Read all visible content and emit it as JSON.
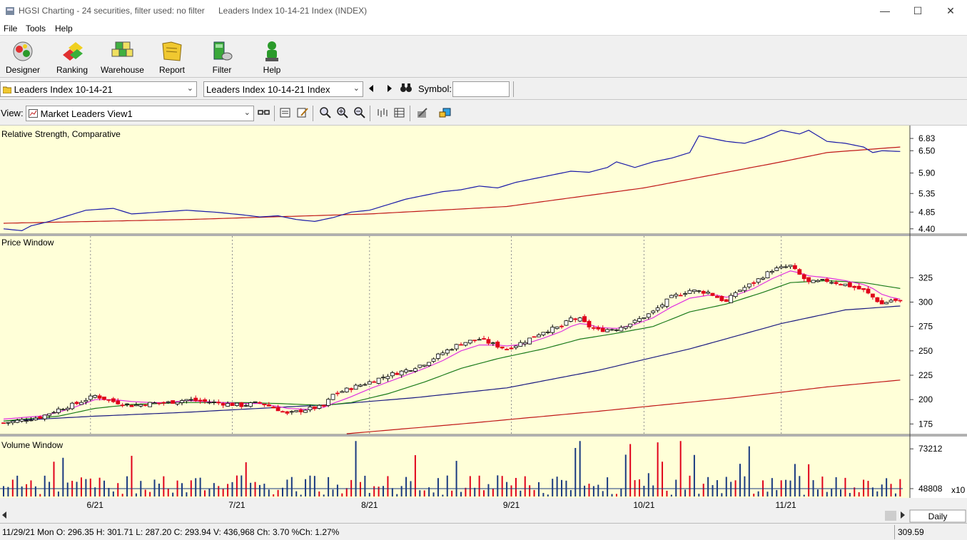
{
  "window": {
    "app_title": "HGSI Charting - 24 securities, filter used: no filter",
    "doc_title": "Leaders Index 10-14-21 Index (INDEX)",
    "minimize": "—",
    "maximize": "☐",
    "close": "✕"
  },
  "menu": {
    "file": "File",
    "tools": "Tools",
    "help": "Help"
  },
  "toolbar": {
    "designer": "Designer",
    "ranking": "Ranking",
    "warehouse": "Warehouse",
    "report": "Report",
    "filter": "Filter",
    "help": "Help"
  },
  "selectors": {
    "list_value": "Leaders Index 10-14-21",
    "security_value": "Leaders Index 10-14-21 Index",
    "symbol_label": "Symbol:",
    "symbol_value": "",
    "view_label": "View:",
    "view_value": "Market Leaders View1"
  },
  "colors": {
    "panel_bg": "#ffffd8",
    "up_candle": "#ffffff",
    "down_candle": "#e0001a",
    "rs_line": "#1a1aa8",
    "rs_ma": "#c01818",
    "ma_short": "#e030e0",
    "ma_mid": "#1a7a1a",
    "ma_long": "#1a1a80",
    "ma_longest": "#c01818",
    "volume_up": "#1a3a80",
    "volume_down": "#e0001a"
  },
  "chart_data": {
    "type": "candlestick",
    "panels": {
      "rs": {
        "title": "Relative Strength, Comparative",
        "ticks": [
          "6.83",
          "6.50",
          "5.90",
          "5.35",
          "4.85",
          "4.40"
        ]
      },
      "price": {
        "title": "Price Window",
        "ticks": [
          "325",
          "300",
          "275",
          "250",
          "225",
          "200",
          "175"
        ]
      },
      "volume": {
        "title": "Volume Window",
        "ticks": [
          "73212",
          "48808"
        ],
        "unit": "x10"
      }
    },
    "x_labels": [
      "6/21",
      "7/21",
      "8/21",
      "9/21",
      "10/21",
      "11/21"
    ],
    "price_range": [
      165,
      345
    ],
    "rs_range": [
      4.3,
      7.1
    ],
    "price_path": [
      [
        0,
        176
      ],
      [
        8,
        182
      ],
      [
        12,
        190
      ],
      [
        16,
        196
      ],
      [
        20,
        204
      ],
      [
        24,
        198
      ],
      [
        28,
        194
      ],
      [
        32,
        196
      ],
      [
        36,
        197
      ],
      [
        40,
        200
      ],
      [
        44,
        198
      ],
      [
        48,
        196
      ],
      [
        52,
        194
      ],
      [
        56,
        197
      ],
      [
        60,
        190
      ],
      [
        62,
        185
      ],
      [
        66,
        190
      ],
      [
        70,
        193
      ],
      [
        72,
        205
      ],
      [
        76,
        212
      ],
      [
        80,
        218
      ],
      [
        84,
        225
      ],
      [
        88,
        230
      ],
      [
        92,
        237
      ],
      [
        96,
        248
      ],
      [
        100,
        258
      ],
      [
        104,
        262
      ],
      [
        108,
        255
      ],
      [
        110,
        252
      ],
      [
        114,
        260
      ],
      [
        118,
        270
      ],
      [
        122,
        275
      ],
      [
        124,
        283
      ],
      [
        126,
        282
      ],
      [
        128,
        275
      ],
      [
        130,
        271
      ],
      [
        134,
        273
      ],
      [
        138,
        280
      ],
      [
        142,
        290
      ],
      [
        146,
        305
      ],
      [
        150,
        312
      ],
      [
        154,
        310
      ],
      [
        156,
        305
      ],
      [
        158,
        300
      ],
      [
        160,
        310
      ],
      [
        164,
        320
      ],
      [
        168,
        333
      ],
      [
        172,
        337
      ],
      [
        174,
        328
      ],
      [
        176,
        320
      ],
      [
        180,
        322
      ],
      [
        184,
        318
      ],
      [
        188,
        312
      ],
      [
        190,
        305
      ],
      [
        192,
        298
      ],
      [
        194,
        302
      ],
      [
        196,
        300
      ]
    ],
    "ma_short_path": [
      [
        0,
        180
      ],
      [
        8,
        183
      ],
      [
        12,
        187
      ],
      [
        16,
        193
      ],
      [
        20,
        200
      ],
      [
        24,
        200
      ],
      [
        28,
        198
      ],
      [
        32,
        197
      ],
      [
        36,
        197
      ],
      [
        40,
        199
      ],
      [
        44,
        198
      ],
      [
        48,
        197
      ],
      [
        52,
        196
      ],
      [
        56,
        196
      ],
      [
        60,
        193
      ],
      [
        62,
        191
      ],
      [
        66,
        190
      ],
      [
        70,
        192
      ],
      [
        72,
        196
      ],
      [
        76,
        203
      ],
      [
        80,
        211
      ],
      [
        84,
        218
      ],
      [
        88,
        225
      ],
      [
        92,
        232
      ],
      [
        96,
        240
      ],
      [
        100,
        250
      ],
      [
        104,
        256
      ],
      [
        108,
        256
      ],
      [
        110,
        255
      ],
      [
        114,
        257
      ],
      [
        118,
        263
      ],
      [
        122,
        270
      ],
      [
        124,
        275
      ],
      [
        126,
        278
      ],
      [
        128,
        277
      ],
      [
        130,
        274
      ],
      [
        134,
        273
      ],
      [
        138,
        277
      ],
      [
        142,
        284
      ],
      [
        146,
        295
      ],
      [
        150,
        304
      ],
      [
        154,
        307
      ],
      [
        156,
        307
      ],
      [
        158,
        305
      ],
      [
        160,
        307
      ],
      [
        164,
        314
      ],
      [
        168,
        324
      ],
      [
        172,
        332
      ],
      [
        174,
        330
      ],
      [
        176,
        327
      ],
      [
        180,
        325
      ],
      [
        184,
        322
      ],
      [
        188,
        318
      ],
      [
        190,
        314
      ],
      [
        192,
        308
      ],
      [
        194,
        305
      ],
      [
        196,
        303
      ]
    ],
    "ma_mid_path": [
      [
        0,
        178
      ],
      [
        12,
        183
      ],
      [
        20,
        191
      ],
      [
        28,
        195
      ],
      [
        40,
        197
      ],
      [
        52,
        197
      ],
      [
        60,
        196
      ],
      [
        70,
        194
      ],
      [
        76,
        197
      ],
      [
        84,
        206
      ],
      [
        92,
        218
      ],
      [
        100,
        232
      ],
      [
        108,
        242
      ],
      [
        118,
        252
      ],
      [
        126,
        262
      ],
      [
        134,
        268
      ],
      [
        142,
        275
      ],
      [
        150,
        290
      ],
      [
        158,
        298
      ],
      [
        166,
        310
      ],
      [
        172,
        320
      ],
      [
        180,
        322
      ],
      [
        188,
        320
      ],
      [
        196,
        314
      ]
    ],
    "ma_long_path": [
      [
        0,
        178
      ],
      [
        20,
        183
      ],
      [
        40,
        187
      ],
      [
        60,
        192
      ],
      [
        72,
        195
      ],
      [
        90,
        202
      ],
      [
        110,
        212
      ],
      [
        130,
        230
      ],
      [
        150,
        252
      ],
      [
        170,
        278
      ],
      [
        184,
        292
      ],
      [
        196,
        296
      ]
    ],
    "ma_longest_path": [
      [
        75,
        165
      ],
      [
        100,
        175
      ],
      [
        130,
        188
      ],
      [
        160,
        202
      ],
      [
        180,
        213
      ],
      [
        196,
        220
      ]
    ],
    "rs_path": [
      [
        0,
        4.4
      ],
      [
        4,
        4.35
      ],
      [
        6,
        4.48
      ],
      [
        10,
        4.6
      ],
      [
        14,
        4.75
      ],
      [
        18,
        4.9
      ],
      [
        24,
        4.95
      ],
      [
        28,
        4.8
      ],
      [
        34,
        4.85
      ],
      [
        40,
        4.9
      ],
      [
        46,
        4.85
      ],
      [
        52,
        4.78
      ],
      [
        56,
        4.72
      ],
      [
        60,
        4.75
      ],
      [
        64,
        4.65
      ],
      [
        68,
        4.6
      ],
      [
        72,
        4.7
      ],
      [
        76,
        4.85
      ],
      [
        80,
        4.9
      ],
      [
        84,
        5.05
      ],
      [
        88,
        5.2
      ],
      [
        92,
        5.3
      ],
      [
        96,
        5.4
      ],
      [
        100,
        5.45
      ],
      [
        104,
        5.55
      ],
      [
        108,
        5.5
      ],
      [
        112,
        5.65
      ],
      [
        116,
        5.75
      ],
      [
        120,
        5.85
      ],
      [
        124,
        5.95
      ],
      [
        128,
        5.92
      ],
      [
        132,
        6.05
      ],
      [
        134,
        6.2
      ],
      [
        138,
        6.05
      ],
      [
        142,
        6.2
      ],
      [
        146,
        6.3
      ],
      [
        150,
        6.45
      ],
      [
        152,
        6.9
      ],
      [
        154,
        6.85
      ],
      [
        158,
        6.75
      ],
      [
        162,
        6.7
      ],
      [
        166,
        6.85
      ],
      [
        170,
        7.05
      ],
      [
        174,
        6.95
      ],
      [
        176,
        7.05
      ],
      [
        180,
        6.75
      ],
      [
        184,
        6.7
      ],
      [
        188,
        6.6
      ],
      [
        190,
        6.45
      ],
      [
        192,
        6.5
      ],
      [
        196,
        6.48
      ]
    ],
    "rs_ma_path": [
      [
        0,
        4.55
      ],
      [
        40,
        4.65
      ],
      [
        80,
        4.8
      ],
      [
        110,
        5.0
      ],
      [
        140,
        5.5
      ],
      [
        170,
        6.2
      ],
      [
        180,
        6.45
      ],
      [
        196,
        6.6
      ]
    ],
    "volume_base": 44000,
    "volume_max": 79000,
    "volume_ma": 48808,
    "status": {
      "bar_info": "11/29/21 Mon O: 296.35 H: 301.71 L: 287.20 C: 293.94 V: 436,968 Ch: 3.70 %Ch: 1.27%",
      "last_value": "309.59",
      "period": "Daily"
    }
  }
}
